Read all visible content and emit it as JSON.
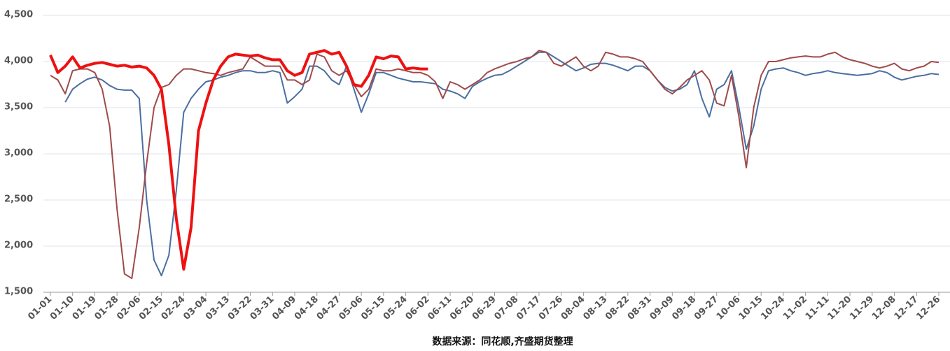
{
  "chart_data": {
    "type": "line",
    "caption": "数据来源：同花顺,齐盛期货整理",
    "categories": [
      "01-01",
      null,
      null,
      "01-10",
      null,
      null,
      "01-19",
      null,
      null,
      "01-28",
      null,
      null,
      "02-06",
      null,
      null,
      "02-15",
      null,
      null,
      "02-24",
      null,
      null,
      "03-04",
      null,
      null,
      "03-13",
      null,
      null,
      "03-22",
      null,
      null,
      "03-31",
      null,
      null,
      "04-09",
      null,
      null,
      "04-18",
      null,
      null,
      "04-27",
      null,
      null,
      "05-06",
      null,
      null,
      "05-15",
      null,
      null,
      "05-24",
      null,
      null,
      "06-02",
      null,
      null,
      "06-11",
      null,
      null,
      "06-20",
      null,
      null,
      "06-29",
      null,
      null,
      "07-08",
      null,
      null,
      "07-17",
      null,
      null,
      "07-26",
      null,
      null,
      "08-04",
      null,
      null,
      "08-13",
      null,
      null,
      "08-22",
      null,
      null,
      "08-31",
      null,
      null,
      "09-09",
      null,
      null,
      "09-18",
      null,
      null,
      "09-27",
      null,
      null,
      "10-06",
      null,
      null,
      "10-15",
      null,
      null,
      "10-24",
      null,
      null,
      "11-02",
      null,
      null,
      "11-11",
      null,
      null,
      "11-20",
      null,
      null,
      "11-29",
      null,
      null,
      "12-08",
      null,
      null,
      "12-17",
      null,
      null,
      "12-26"
    ],
    "ylim": [
      1500,
      4500
    ],
    "yticks": [
      {
        "value": 1500,
        "label": "1,500"
      },
      {
        "value": 2000,
        "label": "2,000"
      },
      {
        "value": 2500,
        "label": "2,500"
      },
      {
        "value": 3000,
        "label": "3,000"
      },
      {
        "value": 3500,
        "label": "3,500"
      },
      {
        "value": 4000,
        "label": "4,000"
      },
      {
        "value": 4500,
        "label": "4,500"
      }
    ],
    "grid": true,
    "series": [
      {
        "color": "#4a6fa0",
        "width": 2,
        "values": [
          null,
          null,
          3560,
          3700,
          3760,
          3810,
          3830,
          3800,
          3740,
          3700,
          3690,
          3690,
          3600,
          2500,
          1850,
          1680,
          1900,
          2600,
          3450,
          3600,
          3700,
          3780,
          3800,
          3830,
          3850,
          3880,
          3900,
          3900,
          3880,
          3880,
          3900,
          3880,
          3550,
          3620,
          3700,
          3950,
          3950,
          3900,
          3800,
          3750,
          3950,
          3700,
          3450,
          3650,
          3880,
          3880,
          3850,
          3820,
          3800,
          3780,
          3780,
          3770,
          3760,
          3700,
          3680,
          3650,
          3600,
          3730,
          3780,
          3820,
          3850,
          3860,
          3900,
          3950,
          4000,
          4050,
          4100,
          4100,
          4050,
          4000,
          3950,
          3900,
          3930,
          3970,
          3980,
          3980,
          3960,
          3930,
          3900,
          3950,
          3950,
          3900,
          3800,
          3720,
          3680,
          3700,
          3750,
          3900,
          3600,
          3400,
          3700,
          3750,
          3900,
          3500,
          3050,
          3300,
          3700,
          3900,
          3920,
          3930,
          3900,
          3880,
          3850,
          3870,
          3880,
          3900,
          3880,
          3870,
          3860,
          3850,
          3860,
          3870,
          3900,
          3880,
          3830,
          3800,
          3820,
          3840,
          3850,
          3870,
          3860
        ]
      },
      {
        "color": "#a04a4a",
        "width": 2,
        "values": [
          3850,
          3800,
          3650,
          3900,
          3920,
          3920,
          3880,
          3700,
          3300,
          2400,
          1700,
          1650,
          2200,
          2900,
          3500,
          3720,
          3750,
          3850,
          3920,
          3920,
          3900,
          3880,
          3870,
          3850,
          3880,
          3900,
          3920,
          4050,
          4000,
          3950,
          3950,
          3950,
          3800,
          3800,
          3750,
          3800,
          4080,
          4050,
          3900,
          3850,
          3900,
          3750,
          3620,
          3700,
          3920,
          3900,
          3900,
          3920,
          3900,
          3880,
          3880,
          3850,
          3780,
          3600,
          3780,
          3750,
          3700,
          3750,
          3800,
          3880,
          3920,
          3950,
          3980,
          4000,
          4030,
          4050,
          4120,
          4100,
          3980,
          3950,
          4000,
          4050,
          3950,
          3900,
          3950,
          4100,
          4080,
          4050,
          4050,
          4030,
          4000,
          3900,
          3800,
          3700,
          3650,
          3720,
          3800,
          3850,
          3900,
          3800,
          3550,
          3520,
          3850,
          3400,
          2850,
          3500,
          3850,
          4000,
          4000,
          4020,
          4040,
          4050,
          4060,
          4050,
          4050,
          4080,
          4100,
          4050,
          4020,
          4000,
          3980,
          3950,
          3930,
          3950,
          3980,
          3920,
          3900,
          3930,
          3950,
          4000,
          3990
        ]
      },
      {
        "color": "#ee1111",
        "width": 4,
        "values": [
          4070,
          3880,
          3950,
          4050,
          3930,
          3960,
          3980,
          3990,
          3970,
          3950,
          3960,
          3940,
          3950,
          3930,
          3850,
          3700,
          3100,
          2300,
          1750,
          2200,
          3250,
          3550,
          3800,
          3950,
          4050,
          4080,
          4070,
          4060,
          4070,
          4040,
          4020,
          4020,
          3900,
          3850,
          3880,
          4080,
          4100,
          4120,
          4080,
          4100,
          3950,
          3750,
          3730,
          3850,
          4050,
          4030,
          4060,
          4050,
          3920,
          3930,
          3920,
          3920,
          null,
          null,
          null,
          null,
          null,
          null,
          null,
          null,
          null,
          null,
          null,
          null,
          null,
          null,
          null,
          null,
          null,
          null,
          null,
          null,
          null,
          null,
          null,
          null,
          null,
          null,
          null,
          null,
          null,
          null,
          null,
          null,
          null,
          null,
          null,
          null,
          null,
          null,
          null,
          null,
          null,
          null,
          null,
          null,
          null,
          null,
          null,
          null,
          null,
          null,
          null,
          null,
          null,
          null,
          null,
          null,
          null,
          null,
          null,
          null,
          null,
          null,
          null,
          null,
          null,
          null,
          null,
          null,
          null
        ]
      }
    ]
  }
}
